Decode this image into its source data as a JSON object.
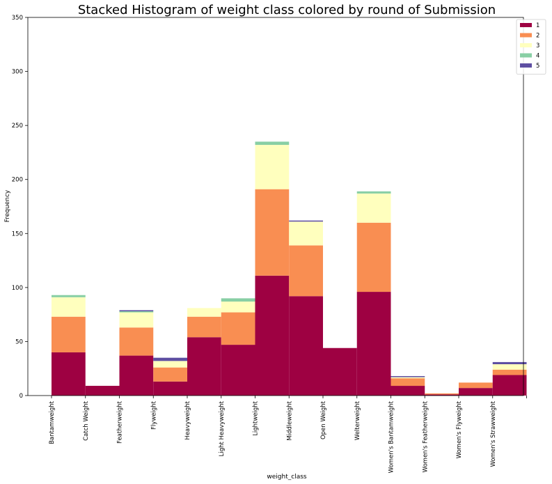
{
  "chart_data": {
    "type": "bar",
    "title": "Stacked Histogram of weight class colored by round of Submission",
    "xlabel": "weight_class",
    "ylabel": "Frequency",
    "ylim": [
      0,
      350
    ],
    "yticks": [
      0,
      50,
      100,
      150,
      200,
      250,
      300,
      350
    ],
    "categories": [
      "Bantamweight",
      "Catch Weight",
      "Featherweight",
      "Flyweight",
      "Heavyweight",
      "Light Heavyweight",
      "Lightweight",
      "Middleweight",
      "Open Weight",
      "Welterweight",
      "Women's Bantamweight",
      "Women's Featherweight",
      "Women's Flyweight",
      "Women's Strawweight"
    ],
    "stacked": true,
    "legend_position": "top-right",
    "grid": false,
    "series": [
      {
        "name": "1",
        "color": "#9e0142",
        "values": [
          40,
          9,
          37,
          13,
          54,
          47,
          111,
          92,
          44,
          96,
          9,
          1,
          7,
          19
        ]
      },
      {
        "name": "2",
        "color": "#f98e52",
        "values": [
          33,
          0,
          26,
          13,
          19,
          30,
          80,
          47,
          0,
          64,
          7,
          1,
          5,
          5
        ]
      },
      {
        "name": "3",
        "color": "#ffffbe",
        "values": [
          18,
          0,
          14,
          6,
          8,
          10,
          41,
          22,
          0,
          27,
          1,
          0,
          0,
          5
        ]
      },
      {
        "name": "4",
        "color": "#88cfa4",
        "values": [
          2,
          0,
          1,
          0,
          0,
          3,
          3,
          0,
          0,
          2,
          0,
          0,
          0,
          0
        ]
      },
      {
        "name": "5",
        "color": "#5e4fa2",
        "values": [
          0,
          0,
          1,
          3,
          0,
          0,
          0,
          1,
          0,
          0,
          1,
          0,
          0,
          2
        ]
      }
    ]
  }
}
